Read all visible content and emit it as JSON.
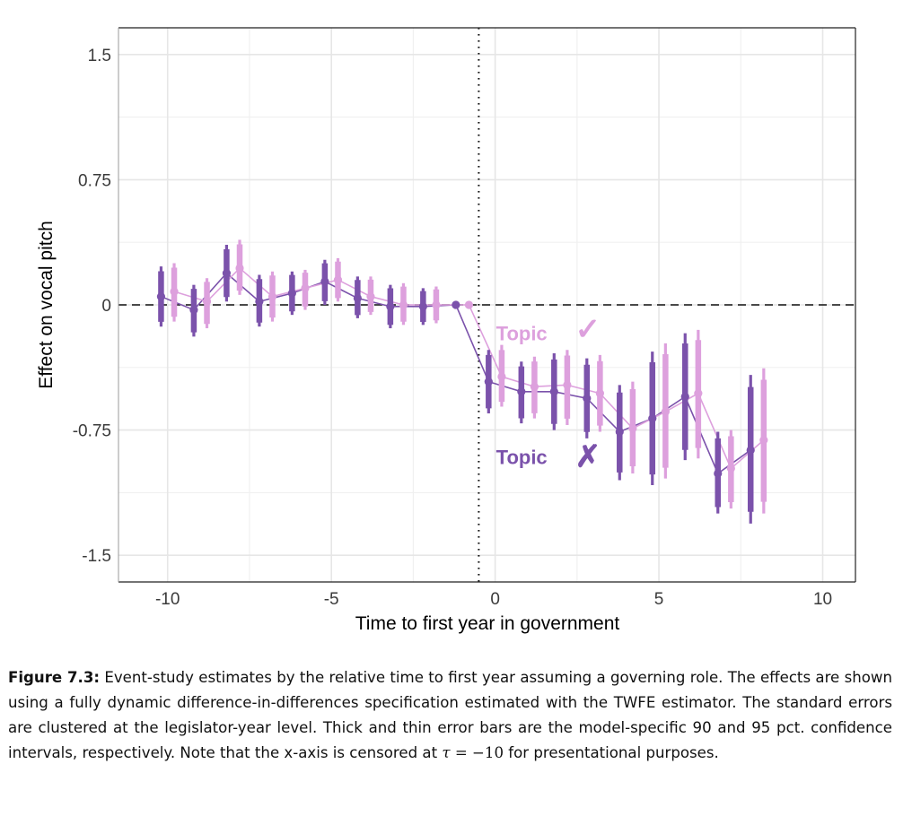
{
  "chart_data": {
    "type": "scatter",
    "subtype": "event-study coefficient plot with error bars",
    "title": "",
    "xlabel": "Time to first year in government",
    "ylabel": "Effect on vocal pitch",
    "xlim": [
      -11.5,
      11
    ],
    "ylim": [
      -1.66,
      1.66
    ],
    "x_ticks": [
      -10,
      -5,
      0,
      5,
      10
    ],
    "x_tick_labels": [
      "-10",
      "-5",
      "0",
      "5",
      "10"
    ],
    "y_ticks": [
      1.5,
      0.75,
      0,
      -0.75,
      -1.5
    ],
    "y_tick_labels": [
      "1.5",
      "0.75",
      "0",
      "-0.75",
      "-1.5"
    ],
    "grid": true,
    "reference_lines": {
      "horizontal_dashed_at": 0,
      "vertical_dotted_at": -0.5
    },
    "series": [
      {
        "name": "Topic ✗",
        "label_text": "Topic",
        "marker_text": "✗",
        "color": "#7B52AB",
        "dodge": -0.2,
        "x": [
          -10,
          -9,
          -8,
          -7,
          -6,
          -5,
          -4,
          -3,
          -2,
          -1,
          0,
          1,
          2,
          3,
          4,
          5,
          6,
          7,
          8
        ],
        "y": [
          0.05,
          -0.03,
          0.19,
          0.02,
          0.07,
          0.14,
          0.04,
          -0.01,
          -0.01,
          0,
          -0.46,
          -0.52,
          -0.52,
          -0.56,
          -0.76,
          -0.68,
          -0.55,
          -1.01,
          -0.87
        ],
        "ci95_low": [
          -0.13,
          -0.19,
          0.02,
          -0.13,
          -0.06,
          0.0,
          -0.08,
          -0.14,
          -0.12,
          null,
          -0.65,
          -0.71,
          -0.75,
          -0.8,
          -1.05,
          -1.08,
          -0.93,
          -1.25,
          -1.31
        ],
        "ci95_high": [
          0.23,
          0.12,
          0.36,
          0.18,
          0.2,
          0.27,
          0.17,
          0.12,
          0.1,
          null,
          -0.27,
          -0.34,
          -0.29,
          -0.32,
          -0.48,
          -0.28,
          -0.17,
          -0.76,
          -0.42
        ]
      },
      {
        "name": "Topic ✓",
        "label_text": "Topic",
        "marker_text": "✓",
        "color": "#DDA0DD",
        "dodge": 0.2,
        "x": [
          -10,
          -9,
          -8,
          -7,
          -6,
          -5,
          -4,
          -3,
          -2,
          -1,
          0,
          1,
          2,
          3,
          4,
          5,
          6,
          7,
          8
        ],
        "y": [
          0.08,
          0.02,
          0.22,
          0.05,
          0.1,
          0.15,
          0.05,
          0.0,
          0.0,
          0,
          -0.43,
          -0.49,
          -0.48,
          -0.53,
          -0.74,
          -0.64,
          -0.53,
          -0.98,
          -0.81
        ],
        "ci95_low": [
          -0.1,
          -0.14,
          0.06,
          -0.1,
          -0.03,
          0.02,
          -0.06,
          -0.12,
          -0.11,
          null,
          -0.61,
          -0.68,
          -0.72,
          -0.76,
          -1.01,
          -1.04,
          -0.92,
          -1.22,
          -1.25
        ],
        "ci95_high": [
          0.25,
          0.16,
          0.39,
          0.2,
          0.21,
          0.28,
          0.17,
          0.13,
          0.11,
          null,
          -0.24,
          -0.31,
          -0.27,
          -0.3,
          -0.46,
          -0.23,
          -0.15,
          -0.75,
          -0.38
        ]
      }
    ],
    "ci_note": "thick bar = 90% CI, thin bar = 95% CI",
    "annotations": [
      {
        "text": "Topic",
        "symbol": "✓",
        "series": "Topic ✓",
        "x": 1.7,
        "y": -0.17
      },
      {
        "text": "Topic",
        "symbol": "✗",
        "series": "Topic ✗",
        "x": 1.7,
        "y": -0.91
      }
    ]
  },
  "caption": {
    "label": "Figure 7.3:",
    "text_before_math": " Event-study estimates by the relative time to first year assuming a governing role.  The effects are shown using a fully dynamic difference-in-differences specification estimated with the TWFE estimator.  The standard errors are clustered at the legislator-year level.  Thick and thin error bars are the model-specific 90 and 95 pct. confidence intervals, respectively. Note that the x-axis is censored at ",
    "math_var": "τ",
    "math_rest": " = −10",
    "text_after_math": " for presentational purposes."
  }
}
